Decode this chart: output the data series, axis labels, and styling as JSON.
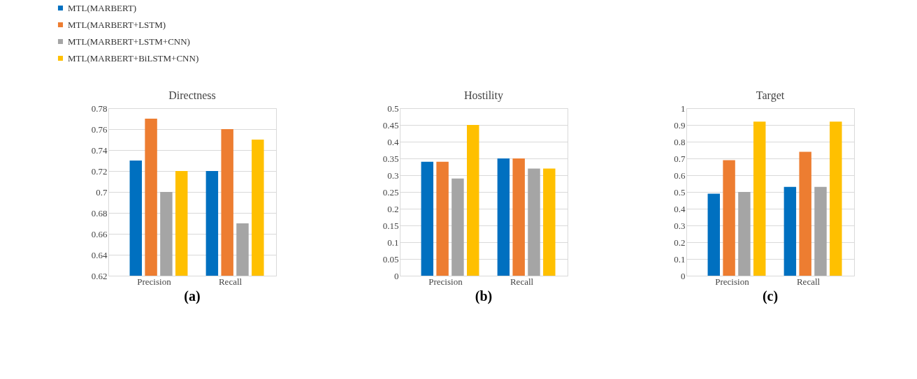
{
  "chart_data": [
    {
      "type": "bar",
      "title": "Directness",
      "categories": [
        "Precision",
        "Recall"
      ],
      "series": [
        {
          "name": "MTL(MARBERT)",
          "color": "#0070c0",
          "values": [
            0.73,
            0.72
          ]
        },
        {
          "name": "MTL(MARBERT+LSTM)",
          "color": "#ed7d31",
          "values": [
            0.77,
            0.76
          ]
        },
        {
          "name": "MTL(MARBERT+LSTM+CNN)",
          "color": "#a5a5a5",
          "values": [
            0.7,
            0.67
          ]
        },
        {
          "name": "MTL(MARBERT+BiLSTM+CNN)",
          "color": "#ffc000",
          "values": [
            0.72,
            0.75
          ]
        }
      ],
      "ylim": [
        0.62,
        0.78
      ],
      "yticks": [
        0.62,
        0.64,
        0.66,
        0.68,
        0.7,
        0.72,
        0.74,
        0.76,
        0.78
      ],
      "grid": "y",
      "legend": "top left",
      "annotations": [
        "(a)"
      ]
    },
    {
      "type": "bar",
      "title": "Hostility",
      "categories": [
        "Precision",
        "Recall"
      ],
      "series": [
        {
          "color": "#0070c0",
          "values": [
            0.34,
            0.35
          ]
        },
        {
          "color": "#ed7d31",
          "values": [
            0.34,
            0.35
          ]
        },
        {
          "color": "#a5a5a5",
          "values": [
            0.29,
            0.32
          ]
        },
        {
          "color": "#ffc000",
          "values": [
            0.45,
            0.32
          ]
        }
      ],
      "ylim": [
        0,
        0.5
      ],
      "yticks": [
        0,
        0.05,
        0.1,
        0.15,
        0.2,
        0.25,
        0.3,
        0.35,
        0.4,
        0.45,
        0.5
      ],
      "grid": "y",
      "annotations": [
        "(b)"
      ]
    },
    {
      "type": "bar",
      "title": "Target",
      "categories": [
        "Precision",
        "Recall"
      ],
      "series": [
        {
          "color": "#0070c0",
          "values": [
            0.49,
            0.53
          ]
        },
        {
          "color": "#ed7d31",
          "values": [
            0.69,
            0.74
          ]
        },
        {
          "color": "#a5a5a5",
          "values": [
            0.5,
            0.53
          ]
        },
        {
          "color": "#ffc000",
          "values": [
            0.92,
            0.92
          ]
        }
      ],
      "ylim": [
        0,
        1
      ],
      "yticks": [
        0,
        0.1,
        0.2,
        0.3,
        0.4,
        0.5,
        0.6,
        0.7,
        0.8,
        0.9,
        1
      ],
      "grid": "y",
      "annotations": [
        "(c)"
      ]
    }
  ]
}
